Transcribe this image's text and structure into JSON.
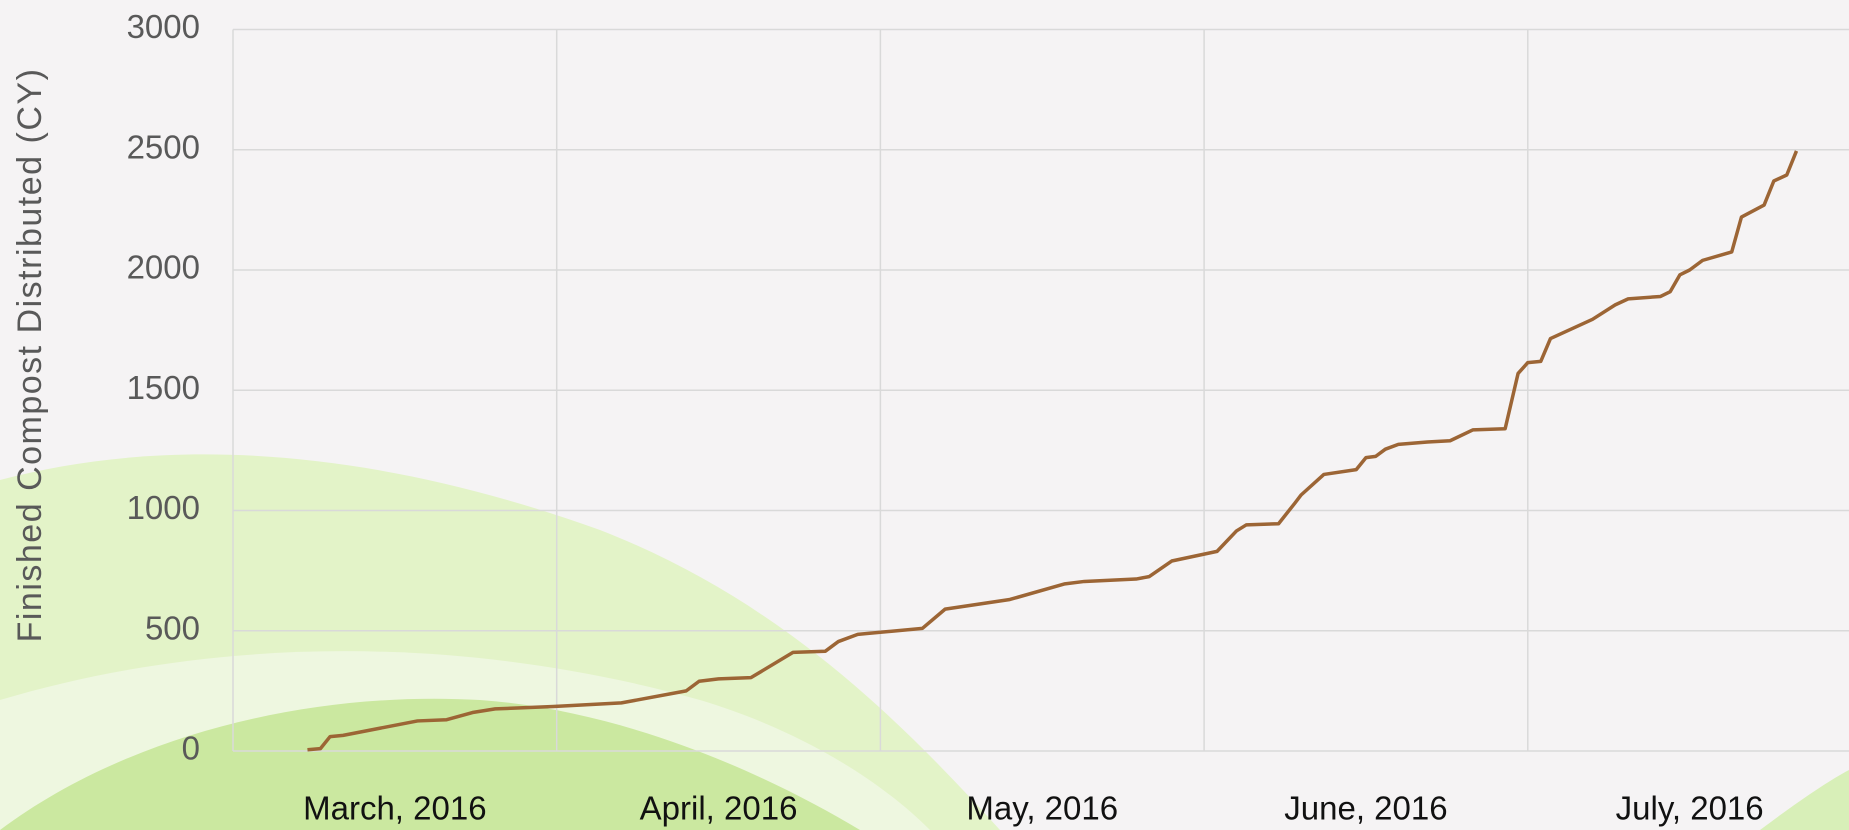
{
  "chart_data": {
    "type": "line",
    "y_label": "Finished Compost Distributed (CY)",
    "xlim": [
      0,
      5
    ],
    "xticks": [
      {
        "value": 0.5,
        "label": "March, 2016"
      },
      {
        "value": 1.5,
        "label": "April, 2016"
      },
      {
        "value": 2.5,
        "label": "May, 2016"
      },
      {
        "value": 3.5,
        "label": "June, 2016"
      },
      {
        "value": 4.5,
        "label": "July, 2016"
      }
    ],
    "ylim": [
      0,
      3000
    ],
    "yticks": [
      0,
      500,
      1000,
      1500,
      2000,
      2500,
      3000
    ],
    "grid": true,
    "series": [
      {
        "color": "#9c6535",
        "x": [
          0.23,
          0.27,
          0.3,
          0.34,
          0.57,
          0.66,
          0.74,
          0.81,
          0.99,
          1.2,
          1.4,
          1.44,
          1.5,
          1.6,
          1.73,
          1.83,
          1.87,
          1.93,
          2.13,
          2.2,
          2.4,
          2.57,
          2.63,
          2.79,
          2.83,
          2.9,
          3.04,
          3.1,
          3.13,
          3.23,
          3.28,
          3.3,
          3.37,
          3.47,
          3.5,
          3.53,
          3.56,
          3.6,
          3.69,
          3.76,
          3.83,
          3.93,
          3.97,
          4.0,
          4.04,
          4.07,
          4.2,
          4.27,
          4.31,
          4.41,
          4.44,
          4.47,
          4.5,
          4.54,
          4.63,
          4.66,
          4.73,
          4.76,
          4.8,
          4.83
        ],
        "values": [
          5,
          10,
          60,
          65,
          125,
          130,
          160,
          175,
          185,
          200,
          250,
          290,
          300,
          305,
          410,
          415,
          455,
          485,
          510,
          590,
          630,
          695,
          705,
          715,
          725,
          790,
          830,
          915,
          940,
          945,
          1030,
          1065,
          1150,
          1170,
          1220,
          1225,
          1255,
          1275,
          1285,
          1290,
          1335,
          1340,
          1570,
          1615,
          1620,
          1715,
          1795,
          1855,
          1880,
          1890,
          1910,
          1980,
          2000,
          2040,
          2075,
          2220,
          2270,
          2370,
          2395,
          2495
        ]
      }
    ]
  }
}
